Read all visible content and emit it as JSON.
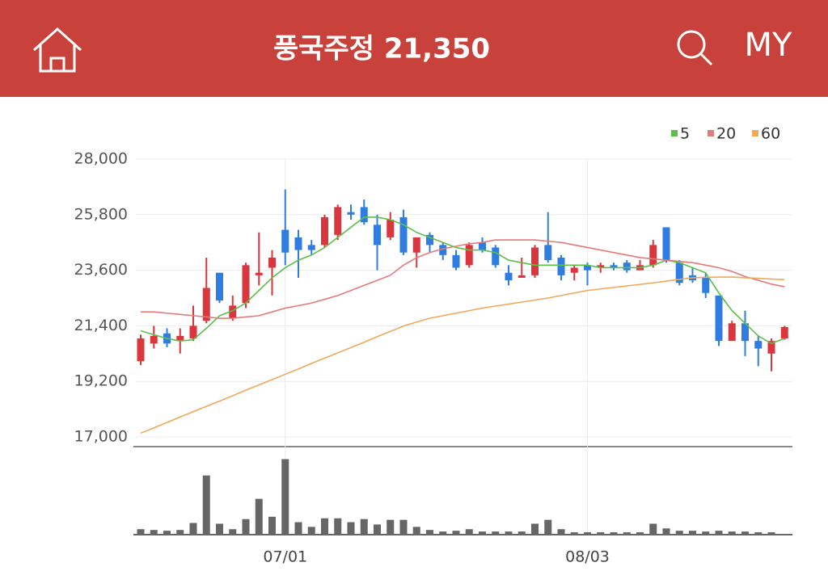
{
  "header": {
    "title": "풍국주정 21,350",
    "my": "MY"
  },
  "chart_data": {
    "type": "candlestick",
    "categories": [
      null,
      null,
      null,
      null,
      null,
      null,
      null,
      null,
      null,
      null,
      null,
      "07/01",
      null,
      null,
      null,
      null,
      null,
      null,
      null,
      null,
      null,
      null,
      null,
      null,
      null,
      null,
      null,
      null,
      null,
      null,
      null,
      null,
      null,
      null,
      "08/03",
      null,
      null,
      null,
      null,
      null,
      null,
      null,
      null,
      null,
      null,
      null,
      null,
      null,
      null,
      null
    ],
    "open": [
      20000,
      20700,
      21100,
      20800,
      20900,
      21600,
      23500,
      21700,
      22300,
      23400,
      23700,
      25200,
      24900,
      24600,
      24600,
      25000,
      25900,
      26100,
      25400,
      24900,
      25700,
      24300,
      25000,
      24600,
      24200,
      23800,
      24700,
      24500,
      23500,
      23300,
      23400,
      24600,
      24100,
      23500,
      23800,
      23700,
      23800,
      23900,
      23600,
      23800,
      25300,
      23900,
      23400,
      23300,
      22600,
      20800,
      21500,
      20800,
      20300,
      20900
    ],
    "high": [
      21050,
      21400,
      21300,
      21300,
      22200,
      24100,
      23500,
      22600,
      23900,
      25100,
      24400,
      26800,
      25200,
      24800,
      25800,
      26200,
      26200,
      26400,
      25800,
      25900,
      26000,
      24900,
      25100,
      24700,
      24400,
      24700,
      24900,
      24600,
      23800,
      24100,
      24600,
      25900,
      24200,
      23800,
      23900,
      23900,
      23900,
      24000,
      24000,
      24800,
      25300,
      24000,
      23700,
      23500,
      22600,
      21600,
      22000,
      21000,
      20900,
      21400
    ],
    "low": [
      19850,
      20500,
      20550,
      20300,
      20800,
      21500,
      22300,
      21600,
      22100,
      23000,
      22600,
      23800,
      23300,
      24200,
      24500,
      24800,
      25600,
      25400,
      23600,
      24800,
      24200,
      23700,
      24300,
      24000,
      23600,
      23700,
      24300,
      23700,
      23000,
      23300,
      23300,
      23900,
      23200,
      23200,
      23000,
      23500,
      23600,
      23500,
      23600,
      23700,
      23900,
      23000,
      23100,
      22500,
      20600,
      20800,
      20200,
      19800,
      19600,
      20850
    ],
    "close": [
      20900,
      21000,
      20700,
      21000,
      21400,
      22900,
      22400,
      22200,
      23800,
      23500,
      24100,
      24300,
      24400,
      24400,
      25700,
      26100,
      25800,
      25500,
      24600,
      25600,
      24300,
      24900,
      24600,
      24200,
      23700,
      24600,
      24400,
      23800,
      23200,
      23400,
      24500,
      24000,
      23400,
      23700,
      23600,
      23800,
      23700,
      23600,
      23800,
      24600,
      24000,
      23100,
      23200,
      22700,
      20800,
      21500,
      20800,
      20500,
      20800,
      21350
    ],
    "up_color": "#d9363e",
    "down_color": "#2f7de0",
    "series": [
      {
        "name": "5",
        "color": "#5cbf4a",
        "values": [
          21200,
          21050,
          20900,
          20800,
          20850,
          21300,
          21800,
          22000,
          22300,
          22800,
          23300,
          23700,
          24000,
          24200,
          24500,
          24900,
          25300,
          25700,
          25700,
          25600,
          25400,
          25100,
          24900,
          24700,
          24500,
          24400,
          24400,
          24300,
          24000,
          23900,
          23800,
          23800,
          23800,
          23800,
          23800,
          23700,
          23700,
          23700,
          23700,
          23800,
          24000,
          23900,
          23700,
          23500,
          22700,
          22000,
          21500,
          21000,
          20700,
          20900
        ]
      },
      {
        "name": "20",
        "color": "#e57a7a",
        "values": [
          21950,
          21950,
          21900,
          21850,
          21800,
          21750,
          21700,
          21700,
          21750,
          21800,
          21950,
          22100,
          22200,
          22300,
          22450,
          22600,
          22800,
          23000,
          23200,
          23400,
          23800,
          24100,
          24300,
          24450,
          24550,
          24650,
          24700,
          24800,
          24800,
          24800,
          24800,
          24750,
          24700,
          24600,
          24500,
          24400,
          24300,
          24200,
          24100,
          24050,
          24000,
          23950,
          23900,
          23800,
          23700,
          23550,
          23350,
          23200,
          23050,
          22950
        ]
      },
      {
        "name": "60",
        "color": "#f0a85a",
        "values": [
          17150,
          17360,
          17570,
          17790,
          18000,
          18210,
          18420,
          18630,
          18850,
          19060,
          19270,
          19480,
          19690,
          19910,
          20120,
          20330,
          20540,
          20750,
          20970,
          21180,
          21390,
          21550,
          21700,
          21800,
          21900,
          22000,
          22100,
          22180,
          22260,
          22340,
          22420,
          22500,
          22600,
          22700,
          22800,
          22860,
          22920,
          22980,
          23040,
          23100,
          23170,
          23240,
          23300,
          23320,
          23330,
          23330,
          23300,
          23280,
          23250,
          23230
        ]
      }
    ],
    "ylim": [
      17000,
      28000
    ],
    "yticks": [
      {
        "value": 17000,
        "label": "17,000"
      },
      {
        "value": 19200,
        "label": "19,200"
      },
      {
        "value": 21400,
        "label": "21,400"
      },
      {
        "value": 23600,
        "label": "23,600"
      },
      {
        "value": 25800,
        "label": "25,800"
      },
      {
        "value": 28000,
        "label": "28,000"
      }
    ],
    "grid": true,
    "volume": {
      "color": "#666666",
      "vlim": [
        0,
        110
      ],
      "values": [
        6,
        5,
        4,
        5,
        14,
        75,
        13,
        6,
        19,
        45,
        22,
        96,
        15,
        9,
        20,
        20,
        15,
        19,
        12,
        18,
        18,
        9,
        5,
        3,
        4,
        6,
        3,
        3,
        3,
        3,
        13,
        18,
        6,
        2,
        2,
        2,
        2,
        2,
        2,
        13,
        7,
        4,
        4,
        3,
        4,
        3,
        3,
        2,
        2,
        0
      ]
    }
  }
}
